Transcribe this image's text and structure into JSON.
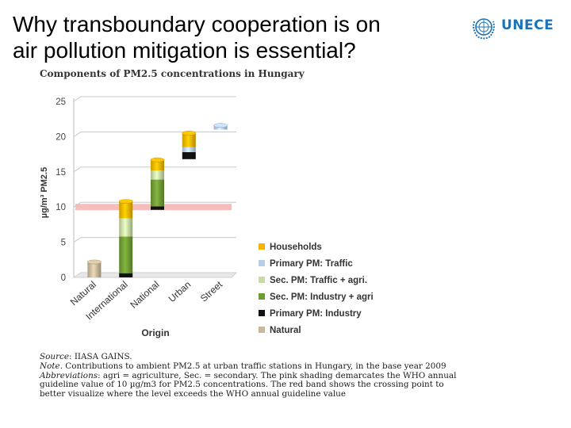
{
  "slide": {
    "title_line1": "Why transboundary cooperation is on",
    "title_line2": "air pollution mitigation is essential?",
    "logo_text": "UNECE",
    "logo_icon": "un-emblem-icon"
  },
  "chart_data": {
    "type": "bar",
    "stacked": true,
    "style": "3d-cylinder",
    "title": "Components of PM2.5 concentrations in Hungary",
    "xlabel": "Origin",
    "ylabel": "µg/m³ PM2.5",
    "ylim": [
      0,
      25
    ],
    "yticks": [
      0,
      5,
      10,
      15,
      20,
      25
    ],
    "grid": true,
    "who_guideline": 10,
    "who_band_color": "#f4a7a7",
    "legend_position": "right",
    "categories": [
      "Natural",
      "International",
      "National",
      "Urban",
      "Street"
    ],
    "series": [
      {
        "name": "Natural",
        "color": "#c9b99a",
        "values": [
          2.2,
          0,
          0,
          0,
          0
        ]
      },
      {
        "name": "Primary PM: Industry",
        "color": "#111111",
        "values": [
          0,
          0.6,
          0.5,
          1.0,
          0
        ]
      },
      {
        "name": "Sec. PM: Industry + agri",
        "color": "#6f9a35",
        "values": [
          0,
          5.2,
          3.8,
          0,
          0
        ]
      },
      {
        "name": "Sec. PM: Traffic + agri.",
        "color": "#c8dca6",
        "values": [
          0,
          2.6,
          1.3,
          0,
          0
        ]
      },
      {
        "name": "Primary PM: Traffic",
        "color": "#b8cde6",
        "values": [
          0,
          0,
          0,
          0.7,
          0.6
        ]
      },
      {
        "name": "Households",
        "color": "#f4b400",
        "values": [
          0,
          2.4,
          1.5,
          2.0,
          0
        ]
      }
    ],
    "bases": [
      0,
      0,
      9.6,
      16.8,
      21.0
    ],
    "legend_order": [
      "Households",
      "Primary PM: Traffic",
      "Sec. PM: Traffic + agri.",
      "Sec. PM: Industry + agri",
      "Primary PM: Industry",
      "Natural"
    ]
  },
  "notes": {
    "source_label": "Source",
    "source_text": ": IIASA GAINS.",
    "note_label": "Note",
    "note_text": ". Contributions to ambient PM2.5 at urban traffic stations in Hungary, in the base year 2009",
    "abbrev_label": "Abbreviations",
    "abbrev_text": ": agri = agriculture, Sec. = secondary. The pink shading demarcates the WHO annual",
    "line4": "guideline value of 10 µg/m3 for PM2.5 concentrations. The red band shows the crossing point to",
    "line5": "better visualize where the level exceeds the WHO annual guideline value"
  }
}
